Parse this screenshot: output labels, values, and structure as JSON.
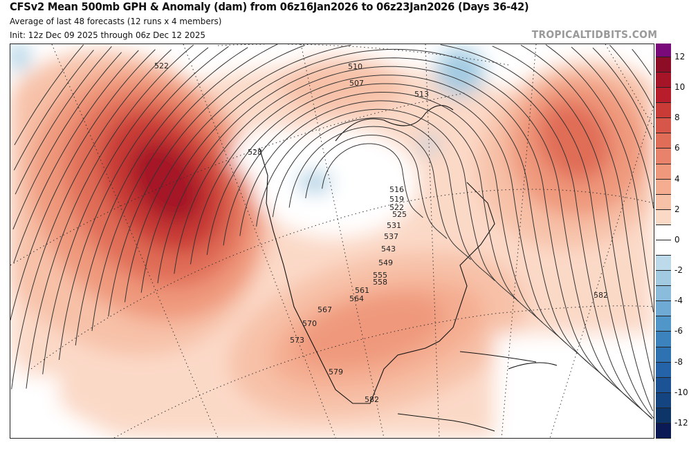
{
  "header": {
    "title": "CFSv2 Mean 500mb GPH & Anomaly (dam) from 06z16Jan2026 to 06z23Jan2026 (Days 36-42)",
    "subtitle": "Average of last 48 forecasts (12 runs x 4 members)",
    "init": "Init: 12z Dec 09 2025 through 06z Dec 12 2025",
    "brand": "TROPICALTIDBITS.COM"
  },
  "colorbar": {
    "ticks": [
      "12",
      "10",
      "8",
      "6",
      "4",
      "2",
      "0",
      "-2",
      "-4",
      "-6",
      "-8",
      "-10",
      "-12"
    ],
    "colors_top_to_bottom": [
      "#7a0a7a",
      "#8c0d25",
      "#a51427",
      "#b81d2b",
      "#c83b36",
      "#d6574a",
      "#e06d57",
      "#e8826a",
      "#ef987b",
      "#f4ad91",
      "#f7c1a8",
      "#fbd9c7",
      "#ffffff",
      "#ffffff",
      "#bcdaea",
      "#a2cbe2",
      "#8bbcdb",
      "#6eaad3",
      "#5196c8",
      "#3c83bd",
      "#2f72b2",
      "#2463a8",
      "#1c5394",
      "#144580",
      "#0e3568",
      "#0b1a55"
    ]
  },
  "contour_labels": [
    "522",
    "510",
    "507",
    "513",
    "528",
    "516",
    "519",
    "522",
    "525",
    "531",
    "537",
    "543",
    "549",
    "555",
    "558",
    "561",
    "564",
    "567",
    "570",
    "573",
    "579",
    "582",
    "582"
  ]
}
